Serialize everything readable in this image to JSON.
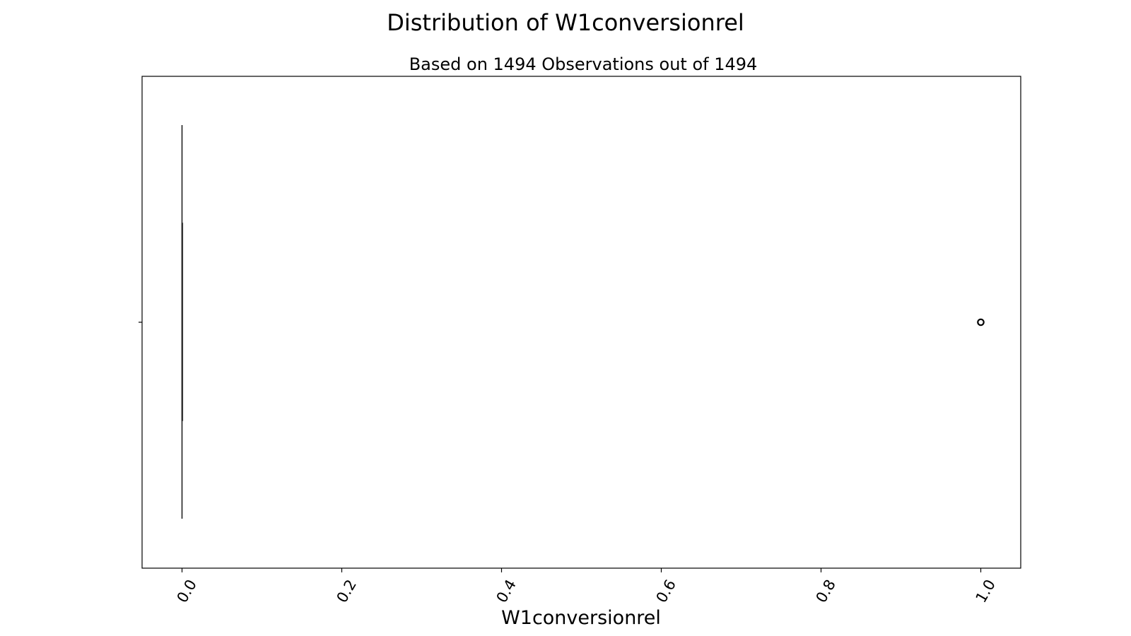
{
  "chart_data": {
    "type": "box",
    "orientation": "horizontal",
    "title": "Distribution of W1conversionrel",
    "subtitle": "Based on 1494 Observations out of 1494",
    "xlabel": "W1conversionrel",
    "ylabel": "",
    "xlim": [
      -0.05,
      1.05
    ],
    "xticks": [
      0.0,
      0.2,
      0.4,
      0.6,
      0.8,
      1.0
    ],
    "xtick_labels": [
      "0.0",
      "0.2",
      "0.4",
      "0.6",
      "0.8",
      "1.0"
    ],
    "xtick_rotation_deg": -60,
    "grid": false,
    "legend": "none",
    "box": {
      "min": 0.0,
      "q1": 0.0,
      "median": 0.0,
      "q3": 0.0,
      "max": 0.0
    },
    "outliers": [
      1.0
    ],
    "colors": {
      "frame": "#000000",
      "box_line": "#333333",
      "outlier_edge": "#000000"
    }
  }
}
